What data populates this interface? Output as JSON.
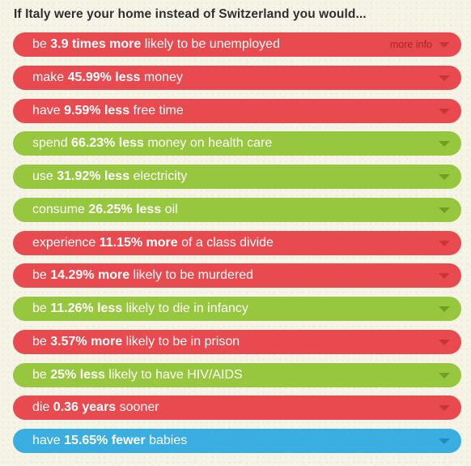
{
  "header": "If Italy were your home instead of Switzerland you would...",
  "more_info_label": "more info",
  "rows": [
    {
      "color": "red",
      "pre": "be ",
      "bold": "3.9 times more",
      "post": " likely to be unemployed",
      "more_info": true
    },
    {
      "color": "red",
      "pre": "make ",
      "bold": "45.99% less",
      "post": " money"
    },
    {
      "color": "red",
      "pre": "have ",
      "bold": "9.59% less",
      "post": " free time"
    },
    {
      "color": "green",
      "pre": "spend ",
      "bold": "66.23% less",
      "post": " money on health care"
    },
    {
      "color": "green",
      "pre": "use ",
      "bold": "31.92% less",
      "post": " electricity"
    },
    {
      "color": "green",
      "pre": "consume ",
      "bold": "26.25% less",
      "post": " oil"
    },
    {
      "color": "red",
      "pre": "experience ",
      "bold": "11.15% more",
      "post": " of a class divide"
    },
    {
      "color": "red",
      "pre": "be ",
      "bold": "14.29% more",
      "post": " likely to be murdered"
    },
    {
      "color": "green",
      "pre": "be ",
      "bold": "11.26% less",
      "post": " likely to die in infancy"
    },
    {
      "color": "red",
      "pre": "be ",
      "bold": "3.57% more",
      "post": " likely to be in prison"
    },
    {
      "color": "green",
      "pre": "be ",
      "bold": "25% less",
      "post": " likely to have HIV/AIDS"
    },
    {
      "color": "red",
      "pre": "die ",
      "bold": "0.36 years",
      "post": " sooner"
    },
    {
      "color": "blue",
      "pre": "have ",
      "bold": "15.65% fewer",
      "post": " babies"
    }
  ],
  "colors": {
    "red": "#e84a4f",
    "green": "#97c73e",
    "blue": "#3aaee0",
    "background": "#f6f4e6"
  }
}
